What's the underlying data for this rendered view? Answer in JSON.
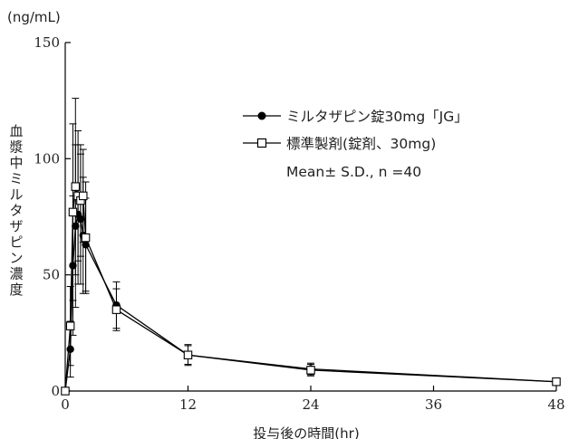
{
  "chart_data": {
    "type": "line",
    "title": "",
    "unit_label": "(ng/mL)",
    "ylabel": "血漿中ミルタザピン濃度",
    "xlabel": "投与後の時間(hr)",
    "xlim": [
      0,
      48
    ],
    "ylim": [
      0,
      150
    ],
    "xticks": [
      0,
      12,
      24,
      36,
      48
    ],
    "yticks": [
      0,
      50,
      100,
      150
    ],
    "xtick_labels": [
      "0",
      "12",
      "24",
      "36",
      "48"
    ],
    "ytick_labels": [
      "0",
      "50",
      "100",
      "150"
    ],
    "grid": false,
    "legend_position": "top-right",
    "legend_note": "Mean± S.D., n =40",
    "series": [
      {
        "name": "ミルタザピン錠30mg「JG」",
        "marker": "filled-circle",
        "color": "#000000",
        "x": [
          0,
          0.5,
          0.75,
          1,
          1.25,
          1.5,
          1.75,
          2,
          5,
          12,
          24,
          48
        ],
        "y": [
          0,
          18,
          54,
          71,
          76,
          74,
          67,
          63,
          37,
          15.5,
          9.5,
          4
        ],
        "sd": [
          0,
          12,
          30,
          35,
          30,
          28,
          25,
          20,
          10,
          4,
          2.5,
          1.2
        ]
      },
      {
        "name": "標準製剤(錠剤、30mg)",
        "marker": "open-square",
        "color": "#000000",
        "x": [
          0,
          0.5,
          0.75,
          1,
          1.25,
          1.5,
          1.75,
          2,
          5,
          12,
          24,
          48
        ],
        "y": [
          0,
          28,
          77,
          88,
          84,
          82,
          84,
          66,
          35,
          15.5,
          9,
          4
        ],
        "sd": [
          0,
          17,
          38,
          38,
          28,
          24,
          20,
          24,
          9,
          4.5,
          2.5,
          1.2
        ]
      }
    ]
  }
}
